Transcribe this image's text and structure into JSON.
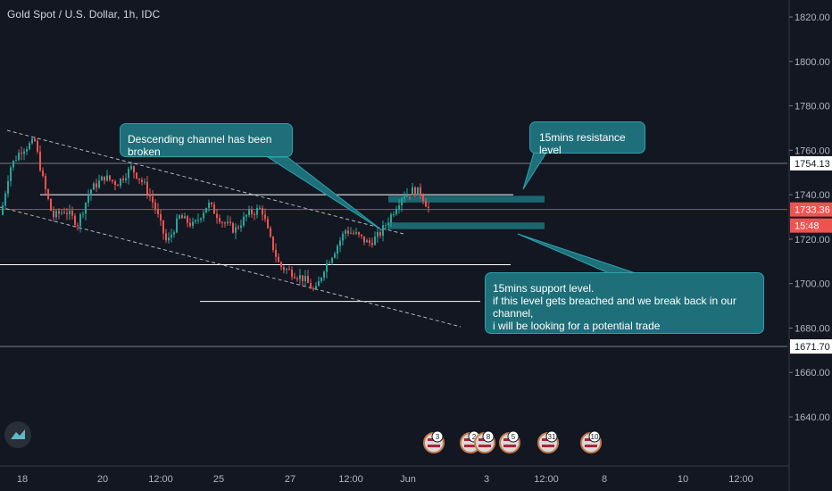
{
  "header": {
    "title": "Gold Spot / U.S. Dollar, 1h, IDC"
  },
  "colors": {
    "background": "#131722",
    "bullish": "#26a69a",
    "bearish": "#ef5350",
    "annotation": "#1e6f79",
    "price_label": "#ef5350"
  },
  "annotations": {
    "channel_broken": "Descending channel has been broken",
    "resistance": "15mins resistance level",
    "support": "15mins support level.\n  if this level gets breached and we break back in our channel,\ni will be looking for a potential trade"
  },
  "price_axis": {
    "current_price": "1733.36",
    "countdown": "15:48",
    "level_high": "1754.13",
    "level_low": "1671.70"
  },
  "event_markers": [
    {
      "label": "3",
      "icon": "flag-icon"
    },
    {
      "label": "2",
      "icon": "flag-icon"
    },
    {
      "label": "8",
      "icon": "flag-icon"
    },
    {
      "label": "5",
      "icon": "flag-icon"
    },
    {
      "label": "31",
      "icon": "flag-icon"
    },
    {
      "label": "10",
      "icon": "flag-icon"
    }
  ],
  "chart_data": {
    "type": "candlestick",
    "title": "Gold Spot / U.S. Dollar, 1h, IDC",
    "ylim": [
      1620,
      1830
    ],
    "y_ticks": [
      1640,
      1660,
      1680,
      1700,
      1720,
      1740,
      1760,
      1780,
      1800,
      1820
    ],
    "y_tick_labels": [
      "1640.00",
      "1660.00",
      "1680.00",
      "1700.00",
      "1720.00",
      "1740.00",
      "1760.00",
      "1780.00",
      "1800.00",
      "1820.00"
    ],
    "x_tick_labels": [
      "18",
      "20",
      "12:00",
      "25",
      "27",
      "12:00",
      "Jun",
      "3",
      "12:00",
      "8",
      "10",
      "12:00"
    ],
    "price_path": [
      [
        0,
        1731
      ],
      [
        10,
        1752
      ],
      [
        22,
        1760
      ],
      [
        38,
        1764
      ],
      [
        48,
        1745
      ],
      [
        58,
        1730
      ],
      [
        72,
        1733
      ],
      [
        86,
        1727
      ],
      [
        100,
        1742
      ],
      [
        116,
        1748
      ],
      [
        130,
        1745
      ],
      [
        146,
        1752
      ],
      [
        160,
        1745
      ],
      [
        172,
        1735
      ],
      [
        186,
        1718
      ],
      [
        200,
        1730
      ],
      [
        216,
        1726
      ],
      [
        232,
        1736
      ],
      [
        248,
        1728
      ],
      [
        262,
        1724
      ],
      [
        276,
        1731
      ],
      [
        292,
        1734
      ],
      [
        300,
        1722
      ],
      [
        312,
        1708
      ],
      [
        326,
        1705
      ],
      [
        340,
        1702
      ],
      [
        352,
        1696
      ],
      [
        362,
        1707
      ],
      [
        374,
        1715
      ],
      [
        386,
        1724
      ],
      [
        398,
        1722
      ],
      [
        412,
        1718
      ],
      [
        424,
        1722
      ],
      [
        436,
        1730
      ],
      [
        450,
        1740
      ],
      [
        462,
        1742
      ],
      [
        470,
        1741
      ],
      [
        480,
        1733
      ]
    ],
    "horizontal_levels": [
      1754.13,
      1740,
      1733.36,
      1708.5,
      1692,
      1671.7
    ],
    "resistance_zone": [
      1736.5,
      1739.5
    ],
    "support_zone": [
      1724.5,
      1727.5
    ]
  }
}
